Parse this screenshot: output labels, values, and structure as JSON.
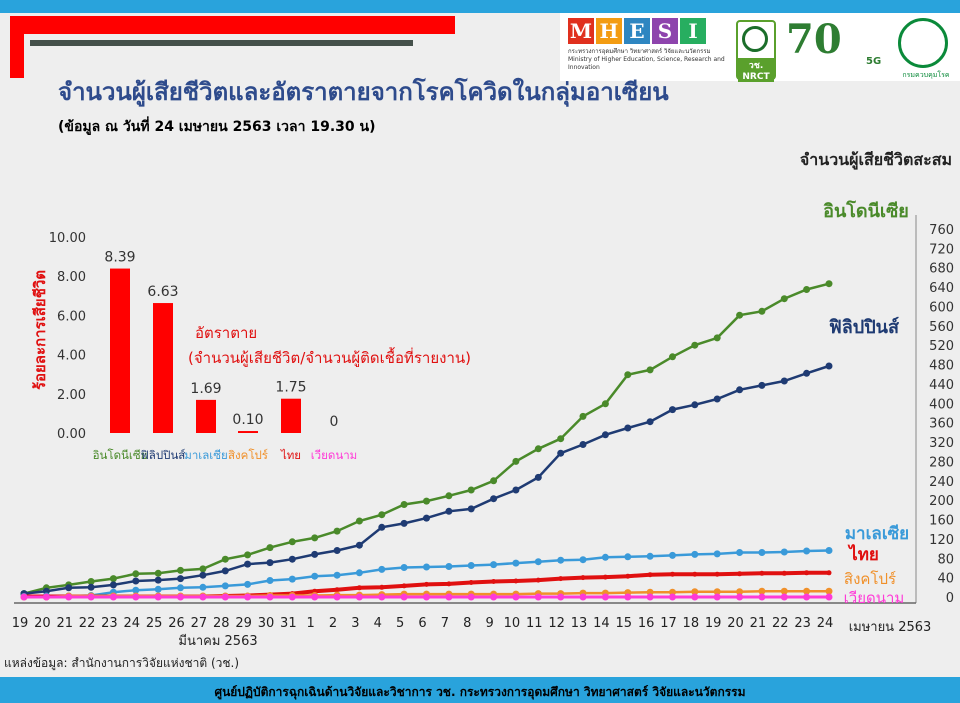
{
  "header": {
    "mhesi_letters": [
      "M",
      "H",
      "E",
      "S",
      "I"
    ],
    "mhesi_colors": [
      "#e0301e",
      "#f39c12",
      "#2e86c1",
      "#8e44ad",
      "#27ae60"
    ],
    "mhesi_sub": "กระทรวงการอุดมศึกษา วิทยาศาสตร์ วิจัยและนวัตกรรม Ministry of Higher Education, Science, Research and Innovation",
    "nrct_label": "วช. NRCT",
    "seventy_label": "70",
    "fiveg_label": "5G",
    "ddc_label": "กรมควบคุมโรค"
  },
  "title": "จำนวนผู้เสียชีวิตและอัตราตายจากโรคโควิดในกลุ่มอาเซียน",
  "subtitle": "(ข้อมูล ณ วันที่ 24 เมษายน 2563 เวลา 19.30 น)",
  "source": "แหล่งข้อมูล: สำนักงานการวิจัยแห่งชาติ (วช.)",
  "footer": "ศูนย์ปฏิบัติการฉุกเฉินด้านวิจัยและวิชาการ   วช.   กระทรวงการอุดมศึกษา วิทยาศาสตร์ วิจัยและนวัตกรรม",
  "chart_data": [
    {
      "type": "line",
      "ylabel": "จำนวนผู้เสียชีวิตสะสม",
      "ylim": [
        0,
        760
      ],
      "yticks": [
        0,
        40,
        80,
        120,
        160,
        200,
        240,
        280,
        320,
        360,
        400,
        440,
        480,
        520,
        560,
        600,
        640,
        680,
        720,
        760
      ],
      "x": [
        "19",
        "20",
        "21",
        "22",
        "23",
        "24",
        "25",
        "26",
        "27",
        "28",
        "29",
        "30",
        "31",
        "1",
        "2",
        "3",
        "4",
        "5",
        "6",
        "7",
        "8",
        "9",
        "10",
        "11",
        "12",
        "13",
        "14",
        "15",
        "16",
        "17",
        "18",
        "19",
        "20",
        "21",
        "22",
        "23",
        "24"
      ],
      "x_group_labels": [
        "มีนาคม 2563",
        "เมษายน 2563"
      ],
      "grid": false,
      "series": [
        {
          "name": "อินโดนีเซีย",
          "color": "#4a8a2a",
          "values": [
            7,
            19,
            25,
            32,
            38,
            48,
            49,
            55,
            58,
            78,
            87,
            102,
            114,
            122,
            136,
            157,
            170,
            191,
            198,
            209,
            221,
            240,
            280,
            306,
            327,
            373,
            399,
            459,
            469,
            496,
            520,
            535,
            582,
            590,
            616,
            635,
            647
          ]
        },
        {
          "name": "ฟิลิปปินส์",
          "color": "#1f3b73",
          "values": [
            7,
            12,
            19,
            20,
            25,
            33,
            35,
            38,
            45,
            54,
            68,
            71,
            78,
            88,
            96,
            107,
            144,
            152,
            163,
            177,
            182,
            203,
            221,
            247,
            297,
            315,
            335,
            349,
            362,
            387,
            397,
            409,
            428,
            437,
            446,
            462,
            477
          ]
        },
        {
          "name": "มาเลเซีย",
          "color": "#3a9ad9",
          "values": [
            1,
            2,
            2,
            3,
            10,
            14,
            16,
            19,
            20,
            23,
            26,
            34,
            37,
            43,
            45,
            50,
            57,
            61,
            62,
            63,
            65,
            67,
            70,
            73,
            76,
            77,
            82,
            83,
            84,
            86,
            88,
            89,
            92,
            92,
            93,
            95,
            96
          ]
        },
        {
          "name": "ไทย",
          "color": "#e01010",
          "values": [
            1,
            1,
            1,
            1,
            1,
            1,
            1,
            1,
            1,
            2,
            3,
            5,
            7,
            12,
            15,
            19,
            20,
            23,
            26,
            27,
            30,
            32,
            33,
            35,
            38,
            40,
            41,
            43,
            46,
            47,
            47,
            47,
            48,
            49,
            49,
            50,
            50
          ]
        },
        {
          "name": "สิงคโปร์",
          "color": "#f0902a",
          "values": [
            0,
            0,
            2,
            2,
            2,
            2,
            2,
            2,
            2,
            2,
            2,
            3,
            3,
            3,
            4,
            4,
            5,
            6,
            6,
            6,
            6,
            6,
            6,
            7,
            7,
            8,
            8,
            9,
            10,
            10,
            11,
            11,
            11,
            12,
            12,
            12,
            12
          ]
        },
        {
          "name": "เวียดนาม",
          "color": "#ff3ad7",
          "values": [
            0,
            0,
            0,
            0,
            0,
            0,
            0,
            0,
            0,
            0,
            0,
            0,
            0,
            0,
            0,
            0,
            0,
            0,
            0,
            0,
            0,
            0,
            0,
            0,
            0,
            0,
            0,
            0,
            0,
            0,
            0,
            0,
            0,
            0,
            0,
            0,
            0
          ]
        }
      ]
    },
    {
      "type": "bar",
      "title": "อัตราตาย",
      "subtitle": "(จำนวนผู้เสียชีวิต/จำนวนผู้ติดเชื้อที่รายงาน)",
      "ylabel": "ร้อยละการเสียชีวิต",
      "ylim": [
        0,
        10
      ],
      "yticks": [
        "0.00",
        "2.00",
        "4.00",
        "6.00",
        "8.00",
        "10.00"
      ],
      "categories": [
        "อินโดนีเซีย",
        "ฟิลิปปินส์",
        "มาเลเซีย",
        "สิงคโปร์",
        "ไทย",
        "เวียดนาม"
      ],
      "category_colors": [
        "#4a8a2a",
        "#1f3b73",
        "#3a9ad9",
        "#f0902a",
        "#e01010",
        "#ff3ad7"
      ],
      "values": [
        8.39,
        6.63,
        1.69,
        0.1,
        1.75,
        0
      ],
      "value_labels": [
        "8.39",
        "6.63",
        "1.69",
        "0.10",
        "1.75",
        "0"
      ],
      "bar_color": "#ff0000"
    }
  ]
}
